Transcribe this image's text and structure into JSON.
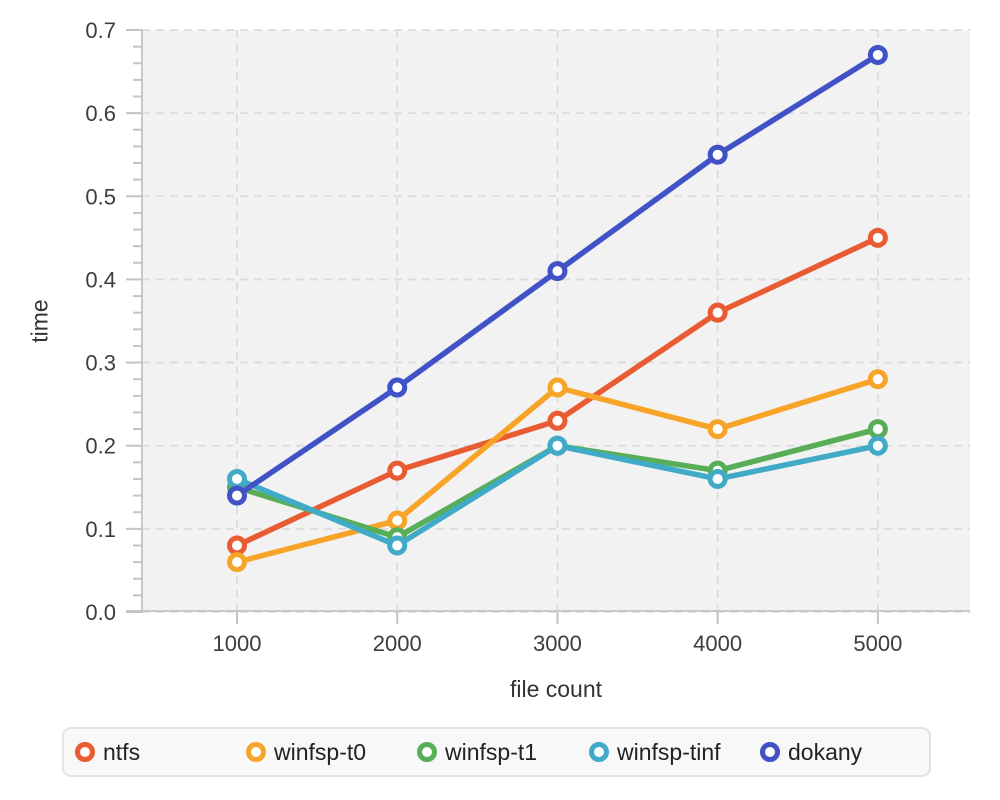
{
  "chart_data": {
    "type": "line",
    "title": "",
    "x_label": "file count",
    "y_label": "time",
    "x": [
      1000,
      2000,
      3000,
      4000,
      5000
    ],
    "x_tick_labels": [
      "1000",
      "2000",
      "3000",
      "4000",
      "5000"
    ],
    "y_ticks": [
      0.0,
      0.1,
      0.2,
      0.3,
      0.4,
      0.5,
      0.6,
      0.7
    ],
    "y_tick_labels": [
      "0.0",
      "0.1",
      "0.2",
      "0.3",
      "0.4",
      "0.5",
      "0.6",
      "0.7"
    ],
    "xlim": [
      407,
      5575
    ],
    "ylim": [
      0,
      0.7
    ],
    "grid": "dashed",
    "plot_background": "#f2f2f3",
    "gridline_color": "#dcdcdd",
    "axis_line_color": "#c8c8c8",
    "tick_color": "#c4c4c4",
    "tick_label_color": "#3d3d3d",
    "legend_position": "bottom",
    "series": [
      {
        "name": "ntfs",
        "color": "#e95c33",
        "values": [
          0.08,
          0.17,
          0.23,
          0.36,
          0.45
        ]
      },
      {
        "name": "winfsp-t0",
        "color": "#f7a428",
        "values": [
          0.06,
          0.11,
          0.27,
          0.22,
          0.28
        ]
      },
      {
        "name": "winfsp-t1",
        "color": "#57ae57",
        "values": [
          0.15,
          0.09,
          0.2,
          0.17,
          0.22
        ]
      },
      {
        "name": "winfsp-tinf",
        "color": "#41aac7",
        "values": [
          0.16,
          0.08,
          0.2,
          0.16,
          0.2
        ]
      },
      {
        "name": "dokany",
        "color": "#4152c6",
        "values": [
          0.14,
          0.27,
          0.41,
          0.55,
          0.67
        ]
      }
    ],
    "marker": "open-circle"
  },
  "legend_item_offsets": [
    21,
    192,
    363,
    535,
    706
  ]
}
